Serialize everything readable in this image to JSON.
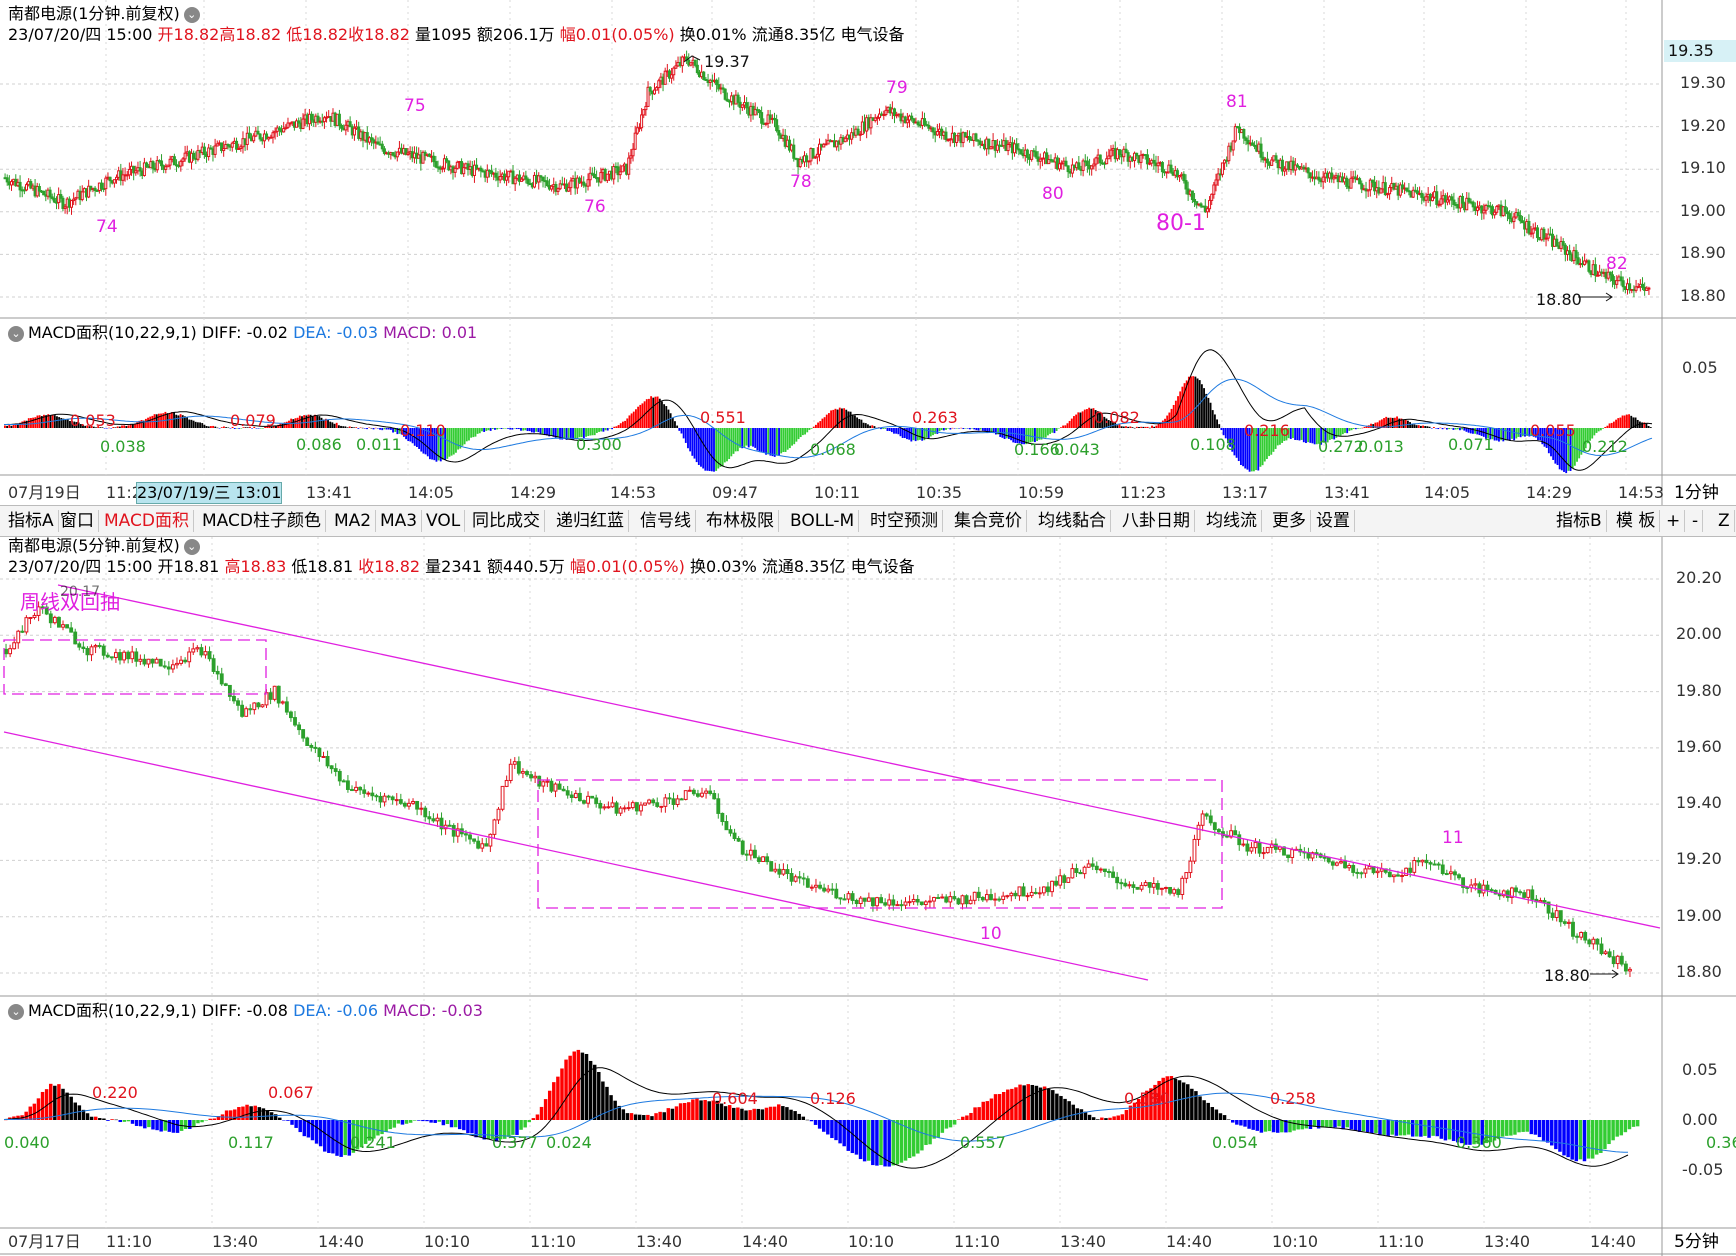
{
  "top": {
    "title": "南都电源(1分钟.前复权)",
    "info": {
      "date": "23/07/20/四 15:00",
      "open": "开18.82",
      "high": "高18.82",
      "low": "低18.82",
      "close": "收18.82",
      "volume": "量1095",
      "amount": "额206.1万",
      "change": "幅0.01(0.05%)",
      "turnover": "换0.01%",
      "float": "流通8.35亿",
      "sector": "电气设备"
    },
    "price_ticks": [
      "19.30",
      "19.20",
      "19.10",
      "19.00",
      "18.90",
      "18.80"
    ],
    "current_price": "19.35",
    "hi_marker": "19.37",
    "lo_marker": "18.80",
    "wave_labels": [
      "74",
      "75",
      "76",
      "79",
      "78",
      "80",
      "81",
      "80-1",
      "82"
    ]
  },
  "top_macd": {
    "label": "MACD面积(10,22,9,1)",
    "diff": "DIFF: -0.02",
    "dea": "DEA: -0.03",
    "macd": "MACD: 0.01",
    "tick": "0.05",
    "area_labels_red": [
      "0.053",
      "0.079",
      "0.110",
      "0.551",
      "0.263",
      "0.082",
      "0.216",
      "0.055"
    ],
    "area_labels_green": [
      "0.038",
      "0.086",
      "0.011",
      "0.300",
      "0.068",
      "0.166",
      "0.043",
      "0.108",
      "0.272",
      "0.013",
      "0.071",
      "0.212"
    ]
  },
  "top_time_axis": {
    "labels": [
      "07月19日",
      "11:2",
      "13:41",
      "14:05",
      "14:29",
      "14:53",
      "09:47",
      "10:11",
      "10:35",
      "10:59",
      "11:23",
      "13:17",
      "13:41",
      "14:05",
      "14:29",
      "14:53"
    ],
    "selected": "23/07/19/三 13:01",
    "period": "1分钟"
  },
  "toolbar": {
    "items": [
      "指标A",
      "窗口",
      "MACD面积",
      "MACD柱子颜色",
      "MA2",
      "MA3",
      "VOL",
      "同比成交",
      "递归红蓝",
      "信号线",
      "布林极限",
      "BOLL-M",
      "时空预测",
      "集合竞价",
      "均线黏合",
      "八卦日期",
      "均线流",
      "更多",
      "设置"
    ],
    "active": "MACD面积",
    "right_items": [
      "指标B",
      "模 板",
      "+",
      "-",
      "Z"
    ]
  },
  "bottom": {
    "title": "南都电源(5分钟.前复权)",
    "info": {
      "date": "23/07/20/四 15:00",
      "open": "开18.81",
      "high": "高18.83",
      "low": "低18.81",
      "close": "收18.82",
      "volume": "量2341",
      "amount": "额440.5万",
      "change": "幅0.01(0.05%)",
      "turnover": "换0.03%",
      "float": "流通8.35亿",
      "sector": "电气设备"
    },
    "price_ticks": [
      "20.20",
      "20.00",
      "19.80",
      "19.60",
      "19.40",
      "19.20",
      "19.00",
      "18.80"
    ],
    "annotation": "周线双回抽",
    "hi_marker": "20.17",
    "lo_marker": "18.80",
    "wave_labels": [
      "10",
      "11"
    ]
  },
  "bottom_macd": {
    "label": "MACD面积(10,22,9,1)",
    "diff": "DIFF: -0.08",
    "dea": "DEA: -0.06",
    "macd": "MACD: -0.03",
    "ticks": [
      "0.05",
      "0.00",
      "-0.05"
    ],
    "area_labels_red": [
      "0.220",
      "0.067",
      "0.604",
      "0.126",
      "0.580",
      "0.258"
    ],
    "area_labels_green": [
      "0.040",
      "0.117",
      "0.241",
      "0.377",
      "0.024",
      "0.557",
      "0.054",
      "0.360",
      "0.36"
    ]
  },
  "bottom_time_axis": {
    "labels": [
      "07月17日",
      "11:10",
      "13:40",
      "14:40",
      "10:10",
      "11:10",
      "13:40",
      "14:40",
      "10:10",
      "11:10",
      "13:40",
      "14:40",
      "10:10",
      "11:10",
      "13:40",
      "14:40"
    ],
    "period": "5分钟"
  },
  "colors": {
    "up": "#e0141e",
    "down": "#2ca02c",
    "macd_up_strong": "#ff0000",
    "macd_up_weak": "#000000",
    "macd_down_strong": "#0000ff",
    "macd_down_weak": "#33cc33",
    "annotation": "#e020e0",
    "dea_line": "#1e7ae0",
    "diff_line": "#000000"
  },
  "chart_data": [
    {
      "type": "candlestick",
      "title": "南都电源(1分钟.前复权)",
      "ylim": [
        18.78,
        19.4
      ],
      "key_points": [
        {
          "label": "74",
          "x": "11:2x",
          "y": 19.0
        },
        {
          "label": "75",
          "x": "14:05",
          "y": 19.23
        },
        {
          "label": "76",
          "x": "14:29",
          "y": 19.05
        },
        {
          "label": "high",
          "x": "09:47",
          "y": 19.37
        },
        {
          "label": "79",
          "x": "10:35",
          "y": 19.25
        },
        {
          "label": "78",
          "x": "10:11",
          "y": 19.1
        },
        {
          "label": "80",
          "x": "11:00",
          "y": 19.08
        },
        {
          "label": "80-1",
          "x": "11:23",
          "y": 19.0
        },
        {
          "label": "81",
          "x": "13:17",
          "y": 19.23
        },
        {
          "label": "82",
          "x": "14:53",
          "y": 18.86
        },
        {
          "label": "low",
          "x": "14:53",
          "y": 18.8
        }
      ]
    },
    {
      "type": "candlestick",
      "title": "南都电源(5分钟.前复权)",
      "ylim": [
        18.75,
        20.25
      ],
      "key_points": [
        {
          "label": "high",
          "x": "07月17日",
          "y": 20.17
        },
        {
          "label": "10",
          "x": "11:10",
          "y": 19.03
        },
        {
          "label": "11",
          "x": "11:10",
          "y": 19.23
        },
        {
          "label": "low",
          "x": "14:40",
          "y": 18.8
        }
      ]
    }
  ]
}
